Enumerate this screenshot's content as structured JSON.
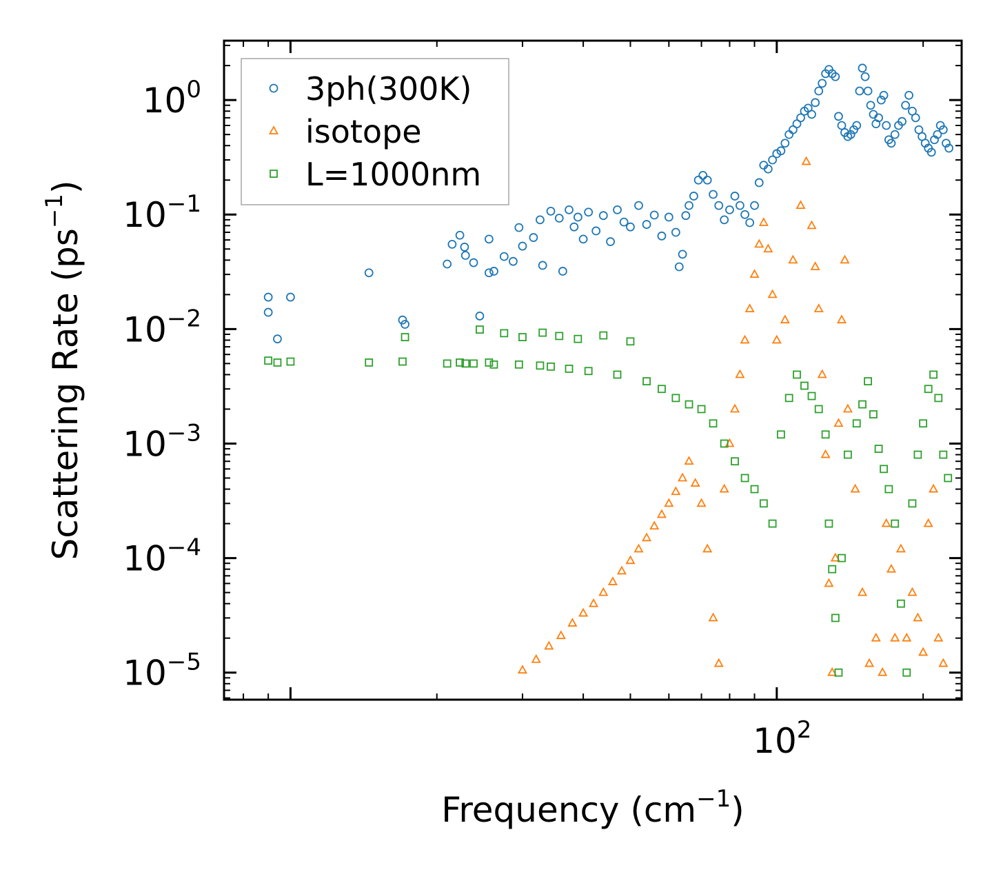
{
  "chart_data": {
    "type": "scatter",
    "title": "",
    "xlabel": "Frequency (cm",
    "xlabel_sup": "−1",
    "xlabel_end": ")",
    "ylabel": "Scattering Rate (ps",
    "ylabel_sup": "−1",
    "ylabel_end": ")",
    "xscale": "log",
    "yscale": "log",
    "xlim": [
      7.3,
      240
    ],
    "ylim": [
      5.8e-06,
      3.3
    ],
    "x_ticks": [
      {
        "value": 100,
        "base": "10",
        "exp": "2"
      }
    ],
    "y_ticks": [
      {
        "value": 1,
        "base": "10",
        "exp": "0"
      },
      {
        "value": 0.1,
        "base": "10",
        "exp": "−1"
      },
      {
        "value": 0.01,
        "base": "10",
        "exp": "−2"
      },
      {
        "value": 0.001,
        "base": "10",
        "exp": "−3"
      },
      {
        "value": 0.0001,
        "base": "10",
        "exp": "−4"
      },
      {
        "value": 1e-05,
        "base": "10",
        "exp": "−5"
      }
    ],
    "legend_position": "top-left",
    "series": [
      {
        "name": "3ph(300K)",
        "marker": "circle",
        "color": "#1f77b4",
        "x": [
          9.0,
          9.0,
          9.4,
          10.0,
          14.5,
          17.0,
          17.2,
          21.0,
          21.5,
          22.3,
          22.8,
          22.9,
          23.8,
          24.5,
          25.6,
          25.6,
          26.2,
          27.5,
          28.7,
          29.5,
          30.0,
          31.6,
          32.6,
          33.0,
          34.3,
          35.7,
          36.3,
          37.4,
          38.3,
          39.0,
          40.0,
          41.0,
          42.5,
          44.0,
          45.5,
          47.0,
          48.5,
          50.0,
          52.0,
          54.0,
          56.0,
          58.0,
          60.0,
          62.0,
          63.0,
          64.0,
          65.0,
          66.0,
          67.5,
          69.0,
          70.5,
          72.0,
          74.0,
          76.0,
          78.0,
          80.0,
          82.0,
          84.0,
          86.0,
          88.0,
          90.0,
          92.0,
          94.0,
          96.0,
          98.0,
          100.0,
          102.0,
          104.0,
          106.0,
          108.0,
          110.0,
          112.0,
          114.0,
          116.0,
          118.0,
          120.0,
          122.0,
          124.0,
          126.0,
          128.0,
          130.0,
          132.0,
          134.0,
          136.0,
          138.0,
          140.0,
          142.0,
          144.0,
          146.0,
          148.0,
          150.0,
          152.0,
          154.0,
          156.0,
          158.0,
          160.0,
          162.0,
          164.0,
          166.0,
          168.0,
          170.0,
          172.0,
          175.0,
          178.0,
          181.0,
          184.0,
          187.0,
          190.0,
          193.0,
          196.0,
          199.0,
          202.0,
          205.0,
          208.0,
          211.0,
          214.0,
          217.0,
          220.0,
          223.0,
          226.0
        ],
        "y": [
          0.019,
          0.014,
          0.0082,
          0.019,
          0.031,
          0.012,
          0.011,
          0.037,
          0.055,
          0.066,
          0.052,
          0.044,
          0.038,
          0.013,
          0.061,
          0.031,
          0.032,
          0.043,
          0.039,
          0.077,
          0.053,
          0.063,
          0.09,
          0.036,
          0.107,
          0.093,
          0.032,
          0.11,
          0.078,
          0.095,
          0.061,
          0.105,
          0.072,
          0.098,
          0.058,
          0.11,
          0.086,
          0.078,
          0.12,
          0.082,
          0.099,
          0.065,
          0.095,
          0.07,
          0.035,
          0.045,
          0.098,
          0.12,
          0.145,
          0.2,
          0.22,
          0.2,
          0.15,
          0.12,
          0.09,
          0.11,
          0.145,
          0.12,
          0.1,
          0.085,
          0.12,
          0.19,
          0.27,
          0.25,
          0.3,
          0.34,
          0.36,
          0.42,
          0.5,
          0.55,
          0.62,
          0.7,
          0.8,
          0.85,
          0.75,
          0.95,
          1.2,
          1.4,
          1.7,
          1.85,
          1.7,
          1.6,
          0.72,
          0.6,
          0.52,
          0.48,
          0.5,
          0.55,
          0.6,
          1.2,
          1.9,
          1.6,
          1.2,
          0.9,
          0.75,
          0.62,
          0.7,
          1.0,
          1.1,
          0.6,
          0.45,
          0.42,
          0.5,
          0.6,
          0.65,
          0.9,
          1.1,
          0.8,
          0.7,
          0.55,
          0.48,
          0.42,
          0.38,
          0.35,
          0.45,
          0.5,
          0.6,
          0.55,
          0.42,
          0.38
        ]
      },
      {
        "name": "isotope",
        "marker": "triangle",
        "color": "#ff7f0e",
        "x": [
          30.0,
          32.0,
          34.0,
          36.0,
          38.0,
          40.0,
          42.0,
          44.0,
          46.0,
          48.0,
          50.0,
          52.0,
          54.0,
          56.0,
          58.0,
          60.0,
          62.0,
          64.0,
          66.0,
          68.0,
          70.0,
          72.0,
          74.0,
          76.0,
          78.0,
          80.0,
          82.0,
          84.0,
          86.0,
          88.0,
          90.0,
          92.0,
          94.0,
          96.0,
          98.0,
          100.0,
          104.0,
          108.0,
          112.0,
          115.0,
          118.0,
          120.0,
          122.0,
          124.0,
          126.0,
          128.0,
          130.0,
          132.0,
          134.0,
          136.0,
          138.0,
          140.0,
          145.0,
          150.0,
          155.0,
          160.0,
          165.0,
          168.0,
          172.0,
          175.0,
          180.0,
          185.0,
          190.0,
          195.0,
          200.0,
          205.0,
          210.0,
          215.0,
          220.0
        ],
        "y": [
          1.05e-05,
          1.3e-05,
          1.7e-05,
          2.1e-05,
          2.7e-05,
          3.3e-05,
          4e-05,
          5e-05,
          6.2e-05,
          7.7e-05,
          9.5e-05,
          0.00012,
          0.00015,
          0.00019,
          0.00024,
          0.0003,
          0.00038,
          0.0005,
          0.0007,
          0.00045,
          0.0003,
          0.00012,
          3e-05,
          1.2e-05,
          0.0004,
          0.001,
          0.002,
          0.004,
          0.008,
          0.015,
          0.03,
          0.055,
          0.085,
          0.05,
          0.02,
          0.008,
          0.012,
          0.04,
          0.12,
          0.29,
          0.08,
          0.035,
          0.015,
          0.004,
          0.0008,
          6e-05,
          1e-05,
          0.0001,
          0.0015,
          0.012,
          0.04,
          0.002,
          0.0004,
          5e-05,
          1.2e-05,
          2e-05,
          1e-05,
          0.0002,
          8e-05,
          2e-05,
          0.00012,
          2e-05,
          5e-05,
          3e-05,
          1.5e-05,
          0.0002,
          0.0004,
          2e-05,
          1.2e-05
        ]
      },
      {
        "name": "L=1000nm",
        "marker": "square",
        "color": "#2ca02c",
        "x": [
          9.0,
          9.4,
          10.0,
          14.5,
          17.0,
          17.2,
          21.0,
          22.3,
          22.9,
          23.8,
          24.5,
          25.6,
          26.2,
          27.5,
          29.5,
          30.0,
          32.6,
          33.0,
          34.3,
          35.7,
          37.4,
          39.0,
          41.0,
          44.0,
          47.0,
          50.0,
          54.0,
          58.0,
          62.0,
          66.0,
          70.0,
          74.0,
          78.0,
          82.0,
          86.0,
          90.0,
          94.0,
          98.0,
          102.0,
          106.0,
          110.0,
          114.0,
          118.0,
          122.0,
          126.0,
          128.0,
          130.0,
          132.0,
          134.0,
          136.0,
          140.0,
          146.0,
          150.0,
          154.0,
          158.0,
          162.0,
          166.0,
          170.0,
          175.0,
          180.0,
          185.0,
          190.0,
          195.0,
          200.0,
          205.0,
          210.0,
          215.0,
          220.0,
          225.0
        ],
        "y": [
          0.0053,
          0.0051,
          0.0052,
          0.0051,
          0.0052,
          0.0085,
          0.005,
          0.0051,
          0.005,
          0.005,
          0.0099,
          0.0051,
          0.0049,
          0.0092,
          0.0049,
          0.0085,
          0.0048,
          0.0093,
          0.0047,
          0.0087,
          0.0045,
          0.0082,
          0.0043,
          0.0088,
          0.004,
          0.0078,
          0.0035,
          0.003,
          0.0025,
          0.0022,
          0.002,
          0.0015,
          0.001,
          0.0007,
          0.0005,
          0.0004,
          0.0003,
          0.0002,
          0.0012,
          0.0025,
          0.004,
          0.0032,
          0.0026,
          0.002,
          0.0012,
          0.0002,
          8e-05,
          3e-05,
          1e-05,
          0.0001,
          0.0008,
          0.0015,
          0.0022,
          0.0035,
          0.0018,
          0.0009,
          0.0006,
          0.0004,
          0.0002,
          4e-05,
          1e-05,
          0.0003,
          0.0008,
          0.0015,
          0.003,
          0.004,
          0.0025,
          0.0008,
          0.0005
        ]
      }
    ]
  }
}
